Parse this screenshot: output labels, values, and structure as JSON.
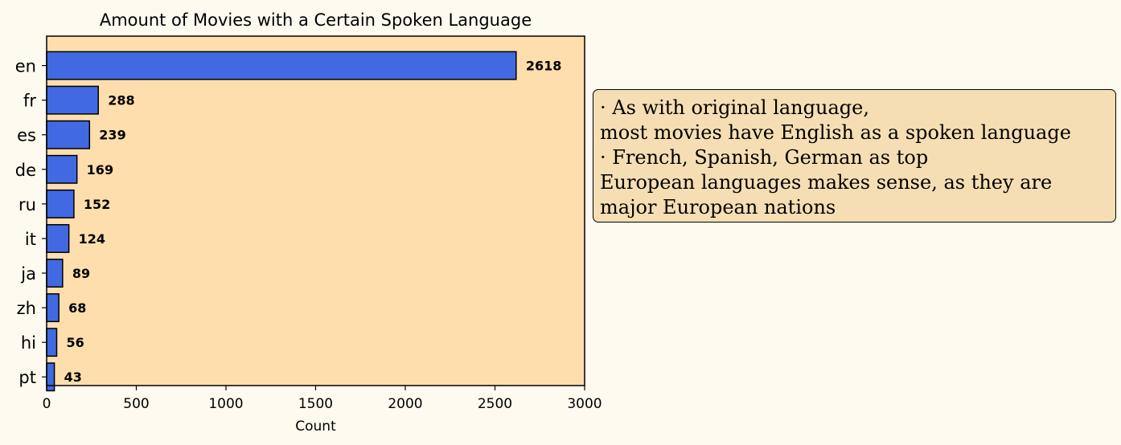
{
  "colors": {
    "background": "#fffaf0",
    "plot_background": "#ffdead",
    "bar_fill": "#4169e1",
    "bar_edge": "#000000",
    "annotation_background": "#f5deb3"
  },
  "annotation": {
    "lines": [
      "· As with original language,",
      "most movies have English as a spoken language",
      "· French, Spanish, German as top",
      "European languages makes sense, as they are",
      "major European nations"
    ]
  },
  "chart_data": {
    "type": "bar",
    "orientation": "horizontal",
    "title": "Amount of Movies with a Certain Spoken Language",
    "xlabel": "Count",
    "ylabel": "",
    "categories": [
      "en",
      "fr",
      "es",
      "de",
      "ru",
      "it",
      "ja",
      "zh",
      "hi",
      "pt"
    ],
    "values": [
      2618,
      288,
      239,
      169,
      152,
      124,
      89,
      68,
      56,
      43
    ],
    "data_labels": [
      "2618",
      "288",
      "239",
      "169",
      "152",
      "124",
      "89",
      "68",
      "56",
      "43"
    ],
    "xlim": [
      0,
      3000
    ],
    "xticks": [
      0,
      500,
      1000,
      1500,
      2000,
      2500,
      3000
    ],
    "xtick_labels": [
      "0",
      "500",
      "1000",
      "1500",
      "2000",
      "2500",
      "3000"
    ],
    "grid": false,
    "legend": "none"
  }
}
